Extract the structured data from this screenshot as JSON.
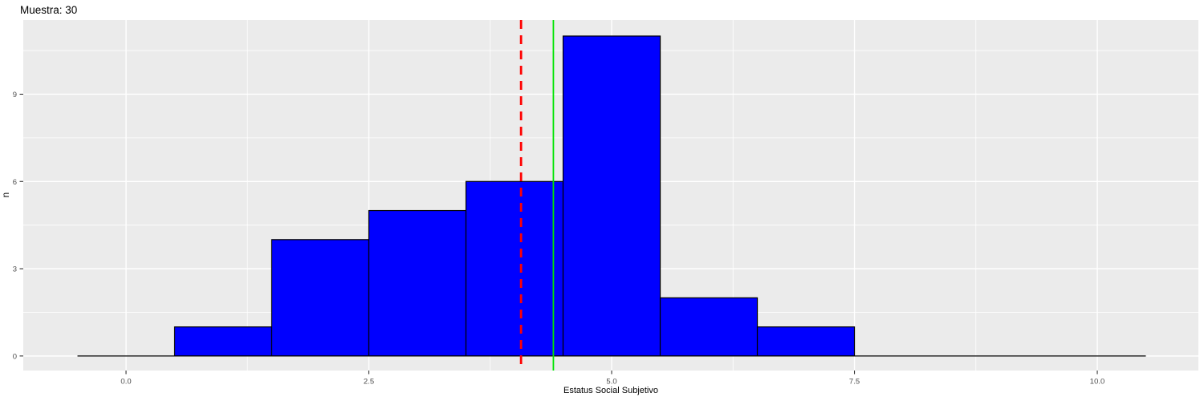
{
  "chart_data": {
    "type": "histogram",
    "title": "Muestra: 30",
    "xlabel": "Estatus Social Subjetivo",
    "ylabel": "n",
    "bin_width": 1,
    "bin_centers": [
      0,
      1,
      2,
      3,
      4,
      5,
      6,
      7,
      8,
      9,
      10
    ],
    "counts": [
      0,
      1,
      4,
      5,
      6,
      11,
      2,
      1,
      0,
      0,
      0
    ],
    "baseline_extent": [
      -0.5,
      10.5
    ],
    "x_axis": {
      "range": [
        -1.058,
        11.041
      ],
      "ticks": [
        {
          "value": 0,
          "label": "0.0"
        },
        {
          "value": 2.5,
          "label": "2.5"
        },
        {
          "value": 5,
          "label": "5.0"
        },
        {
          "value": 7.5,
          "label": "7.5"
        },
        {
          "value": 10,
          "label": "10.0"
        }
      ],
      "minor_ticks": [
        1.25,
        3.75,
        6.25,
        8.75
      ]
    },
    "y_axis": {
      "range": [
        -0.5,
        11.55
      ],
      "ticks": [
        {
          "value": 0,
          "label": "0"
        },
        {
          "value": 3,
          "label": "3"
        },
        {
          "value": 6,
          "label": "6"
        },
        {
          "value": 9,
          "label": "9"
        }
      ],
      "minor_ticks": [
        1.5,
        4.5,
        7.5,
        10.5
      ]
    },
    "vlines": [
      {
        "name": "red-dashed-vline",
        "x": 4.067,
        "color": "#ff0000",
        "style": "dashed",
        "width": 2.8
      },
      {
        "name": "green-solid-vline",
        "x": 4.4,
        "color": "#00e400",
        "style": "solid",
        "width": 1.8
      }
    ],
    "style": {
      "bar_fill": "#0000ff",
      "bar_stroke": "#000000",
      "panel_bg": "#ebebeb",
      "grid_color": "#ffffff",
      "baseline_color": "#000000",
      "tick_label_color": "#4d4d4d",
      "tick_mark_color": "#333333",
      "background": "#ffffff"
    }
  }
}
